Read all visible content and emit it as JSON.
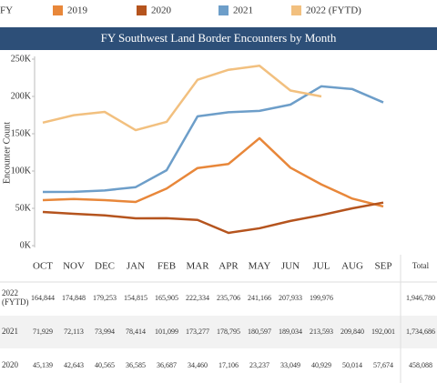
{
  "chart_data": {
    "type": "line",
    "title": "FY Southwest Land Border Encounters by Month",
    "legend_title": "FY",
    "y_label": "Encounter Count",
    "categories": [
      "OCT",
      "NOV",
      "DEC",
      "JAN",
      "FEB",
      "MAR",
      "APR",
      "MAY",
      "JUN",
      "JUL",
      "AUG",
      "SEP"
    ],
    "ylim": [
      0,
      250000
    ],
    "yticks": [
      {
        "value": 0,
        "label": "0K"
      },
      {
        "value": 50000,
        "label": "50K"
      },
      {
        "value": 100000,
        "label": "100K"
      },
      {
        "value": 150000,
        "label": "150K"
      },
      {
        "value": 200000,
        "label": "200K"
      },
      {
        "value": 250000,
        "label": "250K"
      }
    ],
    "grid": false,
    "total_header": "Total",
    "series": [
      {
        "name": "2019",
        "color": "#e8873a",
        "values": [
          61000,
          62500,
          61000,
          58500,
          76500,
          104000,
          109500,
          144000,
          104500,
          82000,
          63000,
          52500
        ]
      },
      {
        "name": "2020",
        "color": "#b5541e",
        "values": [
          45139,
          42643,
          40565,
          36585,
          36687,
          34460,
          17106,
          23237,
          33049,
          40929,
          50014,
          57674
        ],
        "value_labels": [
          "45,139",
          "42,643",
          "40,565",
          "36,585",
          "36,687",
          "34,460",
          "17,106",
          "23,237",
          "33,049",
          "40,929",
          "50,014",
          "57,674"
        ],
        "total": 458088,
        "total_label": "458,088"
      },
      {
        "name": "2021",
        "color": "#6d9ec9",
        "values": [
          71929,
          72113,
          73994,
          78414,
          101099,
          173277,
          178795,
          180597,
          189034,
          213593,
          209840,
          192001
        ],
        "value_labels": [
          "71,929",
          "72,113",
          "73,994",
          "78,414",
          "101,099",
          "173,277",
          "178,795",
          "180,597",
          "189,034",
          "213,593",
          "209,840",
          "192,001"
        ],
        "total": 1734686,
        "total_label": "1,734,686"
      },
      {
        "name": "2022 (FYTD)",
        "color": "#f2c07f",
        "values": [
          164844,
          174848,
          179253,
          154815,
          165905,
          222334,
          235706,
          241166,
          207933,
          199976,
          null,
          null
        ],
        "value_labels": [
          "164,844",
          "174,848",
          "179,253",
          "154,815",
          "165,905",
          "222,334",
          "235,706",
          "241,166",
          "207,933",
          "199,976",
          null,
          null
        ],
        "total": 1946780,
        "total_label": "1,946,780"
      }
    ]
  }
}
